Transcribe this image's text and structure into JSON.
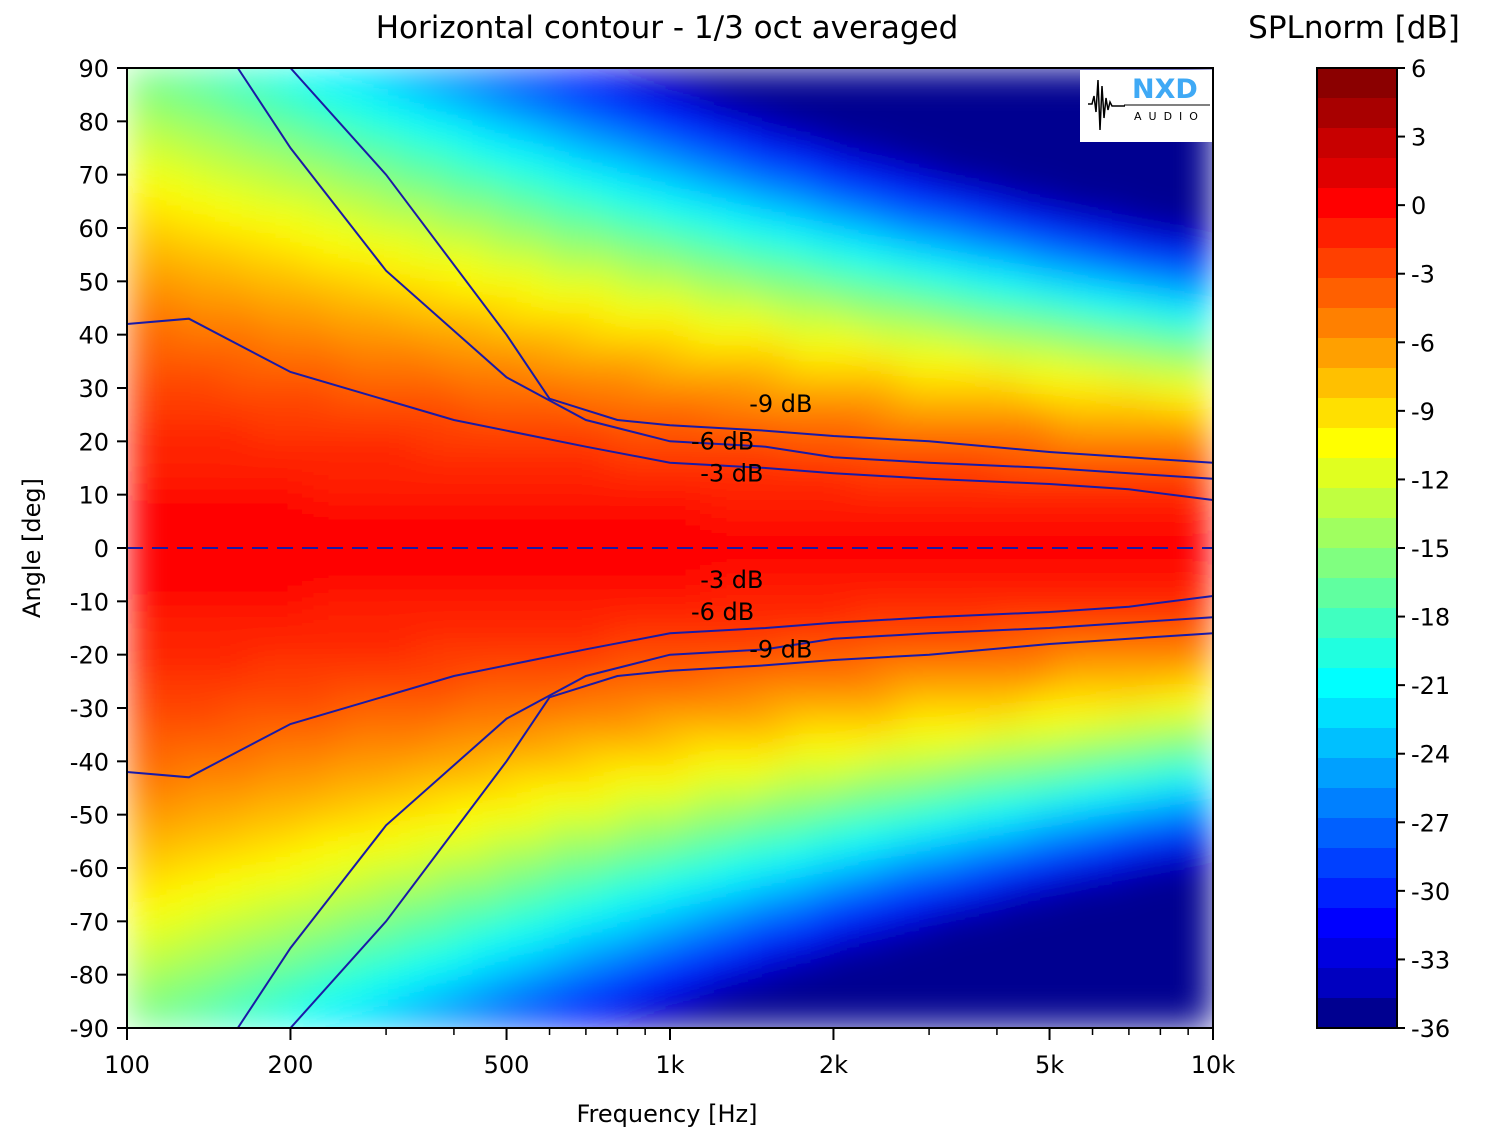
{
  "chart_data": {
    "type": "heatmap",
    "title": "Horizontal contour - 1/3 oct averaged",
    "xlabel": "Frequency [Hz]",
    "ylabel": "Angle [deg]",
    "xscale": "log",
    "xlim": [
      100,
      10000
    ],
    "ylim": [
      -90,
      90
    ],
    "x_ticks": [
      {
        "value": 100,
        "label": "100"
      },
      {
        "value": 200,
        "label": "200"
      },
      {
        "value": 500,
        "label": "500"
      },
      {
        "value": 1000,
        "label": "1k"
      },
      {
        "value": 2000,
        "label": "2k"
      },
      {
        "value": 5000,
        "label": "5k"
      },
      {
        "value": 10000,
        "label": "10k"
      }
    ],
    "x_minor_ticks": [
      300,
      400,
      600,
      700,
      800,
      900,
      3000,
      4000,
      6000,
      7000,
      8000,
      9000
    ],
    "y_ticks": [
      90,
      80,
      70,
      60,
      50,
      40,
      30,
      20,
      10,
      0,
      -10,
      -20,
      -30,
      -40,
      -50,
      -60,
      -70,
      -80,
      -90
    ],
    "colorbar": {
      "label": "SPLnorm [dB]",
      "min": -36,
      "max": 6,
      "step": 1.5,
      "tick_values": [
        6,
        3,
        0,
        -3,
        -6,
        -9,
        -12,
        -15,
        -18,
        -21,
        -24,
        -27,
        -30,
        -33,
        -36
      ],
      "colors_top_to_bottom": [
        "#8b0000",
        "#a80000",
        "#c80000",
        "#e00000",
        "#ff0000",
        "#ff2000",
        "#ff4000",
        "#ff6000",
        "#ff8000",
        "#ffa000",
        "#ffc000",
        "#ffe000",
        "#ffff00",
        "#e0ff20",
        "#c0ff40",
        "#a0ff60",
        "#80ff80",
        "#60ffa0",
        "#40ffc0",
        "#20ffe0",
        "#00ffff",
        "#00e0ff",
        "#00c0ff",
        "#00a0ff",
        "#0080ff",
        "#0060ff",
        "#0040ff",
        "#0020ff",
        "#0000ff",
        "#0000e0",
        "#0000c0",
        "#000090"
      ]
    },
    "series": [
      {
        "name": "-3 dB",
        "x": [
          100,
          130,
          200,
          400,
          700,
          1000,
          1500,
          2000,
          3000,
          5000,
          7000,
          10000
        ],
        "y": [
          42,
          43,
          33,
          24,
          19,
          16,
          15,
          14,
          13,
          12,
          11,
          9
        ]
      },
      {
        "name": "-6 dB",
        "x": [
          160,
          200,
          300,
          500,
          700,
          1000,
          1500,
          2000,
          3000,
          5000,
          7000,
          10000
        ],
        "y": [
          90,
          75,
          52,
          32,
          24,
          20,
          19,
          17,
          16,
          15,
          14,
          13
        ]
      },
      {
        "name": "-9 dB",
        "x": [
          200,
          300,
          500,
          600,
          800,
          1000,
          1500,
          2000,
          3000,
          5000,
          7000,
          10000
        ],
        "y": [
          90,
          70,
          40,
          28,
          24,
          23,
          22,
          21,
          20,
          18,
          17,
          16
        ]
      }
    ],
    "reference_line": {
      "y": 0,
      "style": "dashed"
    },
    "contour_labels": [
      {
        "text": "-9 dB",
        "x": 1600,
        "y": 27
      },
      {
        "text": "-6 dB",
        "x": 1250,
        "y": 20
      },
      {
        "text": "-3 dB",
        "x": 1300,
        "y": 14
      },
      {
        "text": "-3 dB",
        "x": 1300,
        "y": -6
      },
      {
        "text": "-6 dB",
        "x": 1250,
        "y": -12
      },
      {
        "text": "-9 dB",
        "x": 1600,
        "y": -19
      }
    ],
    "legend": "none",
    "grid": false
  },
  "logo": {
    "brand": "NXD",
    "sub": "AUDIO"
  }
}
